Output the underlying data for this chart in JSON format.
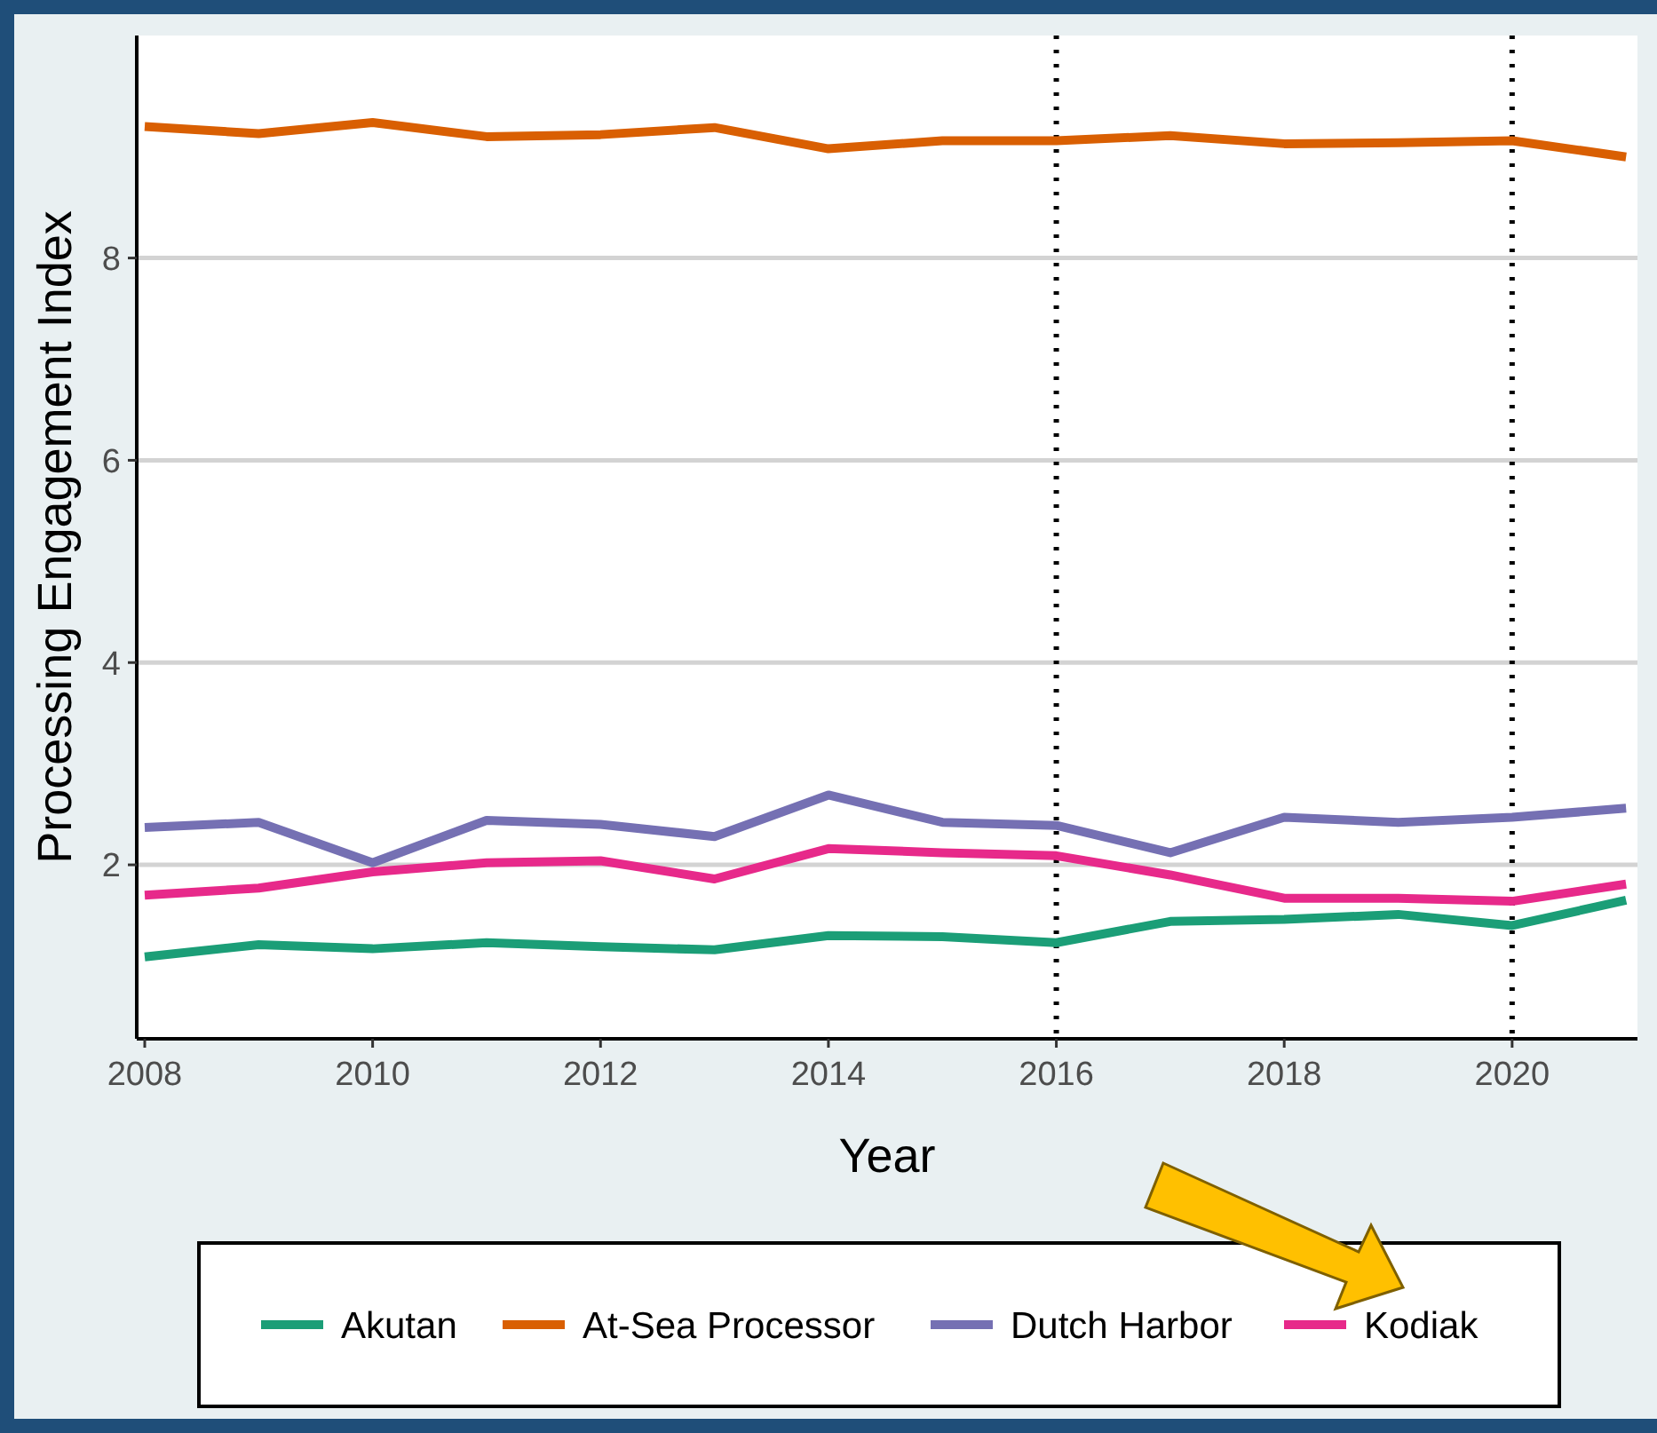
{
  "chart_data": {
    "type": "line",
    "xlabel": "Year",
    "ylabel": "Processing Engagement Index",
    "x": [
      2008,
      2009,
      2010,
      2011,
      2012,
      2013,
      2014,
      2015,
      2016,
      2017,
      2018,
      2019,
      2020,
      2021
    ],
    "xlim": [
      2007.93,
      2021.1
    ],
    "xticks": [
      2008,
      2010,
      2012,
      2014,
      2016,
      2018,
      2020
    ],
    "ylim": [
      0.28,
      10.2
    ],
    "yticks": [
      2,
      4,
      6,
      8
    ],
    "grid": "y",
    "legend": "bottom",
    "line_style": "solid",
    "ref_lines": [
      {
        "axis": "x",
        "value": 2016,
        "line_style": "dotted",
        "color": "#000000"
      },
      {
        "axis": "x",
        "value": 2020,
        "line_style": "dotted",
        "color": "#000000"
      }
    ],
    "series": [
      {
        "name": "Akutan",
        "color": "#1b9e77",
        "values": [
          1.09,
          1.21,
          1.17,
          1.23,
          1.19,
          1.16,
          1.3,
          1.29,
          1.23,
          1.44,
          1.46,
          1.51,
          1.4,
          1.65
        ]
      },
      {
        "name": "At-Sea Processor",
        "color": "#d95f02",
        "values": [
          9.3,
          9.23,
          9.34,
          9.2,
          9.22,
          9.29,
          9.08,
          9.16,
          9.16,
          9.21,
          9.13,
          9.14,
          9.16,
          9.0
        ]
      },
      {
        "name": "Dutch Harbor",
        "color": "#7570b3",
        "values": [
          2.37,
          2.42,
          2.02,
          2.44,
          2.4,
          2.28,
          2.69,
          2.42,
          2.39,
          2.12,
          2.47,
          2.42,
          2.47,
          2.56
        ]
      },
      {
        "name": "Kodiak",
        "color": "#e7298a",
        "values": [
          1.7,
          1.77,
          1.93,
          2.02,
          2.04,
          1.86,
          2.16,
          2.12,
          2.09,
          1.9,
          1.67,
          1.67,
          1.64,
          1.81
        ]
      }
    ]
  }
}
